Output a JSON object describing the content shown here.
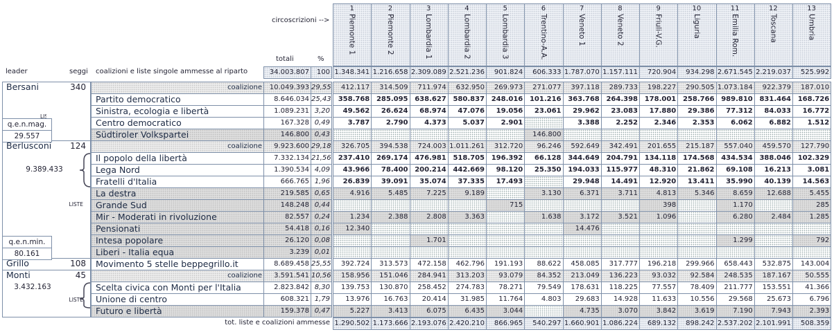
{
  "header": {
    "arrow": "circoscrizioni -->",
    "totals_label": "totali",
    "pct_label": "%",
    "leader_label": "leader",
    "seats_label": "seggi",
    "lists_label": "coalizioni e liste singole ammesse al riparto"
  },
  "districts": [
    {
      "number": "1",
      "name": "Piemonte 1"
    },
    {
      "number": "2",
      "name": "Piemonte 2"
    },
    {
      "number": "3",
      "name": "Lombardia 1"
    },
    {
      "number": "4",
      "name": "Lombardia 2"
    },
    {
      "number": "5",
      "name": "Lombardia 3"
    },
    {
      "number": "6",
      "name": "Trentino-A.A."
    },
    {
      "number": "7",
      "name": "Veneto 1"
    },
    {
      "number": "8",
      "name": "Veneto 2"
    },
    {
      "number": "9",
      "name": "Friuli-V.G."
    },
    {
      "number": "10",
      "name": "Liguria"
    },
    {
      "number": "11",
      "name": "Emilia Rom."
    },
    {
      "number": "12",
      "name": "Toscana"
    },
    {
      "number": "13",
      "name": "Umbria"
    }
  ],
  "grand_total": {
    "total": "34.003.807",
    "pct": "100",
    "values": [
      "1.348.341",
      "1.216.658",
      "2.309.089",
      "2.521.236",
      "901.824",
      "606.333",
      "1.787.070",
      "1.157.111",
      "720.904",
      "934.298",
      "2.671.545",
      "2.219.037",
      "525.992"
    ]
  },
  "rows": [
    {
      "leader": "Bersani",
      "seats": "340",
      "label": "coalizione",
      "total": "10.049.393",
      "pct": "29,55",
      "values": [
        "412.117",
        "314.509",
        "711.974",
        "632.950",
        "269.973",
        "271.077",
        "397.118",
        "289.733",
        "198.227",
        "290.505",
        "1.073.184",
        "922.379",
        "187.010"
      ]
    },
    {
      "label": "Partito democratico",
      "total": "8.646.034",
      "pct": "25,43",
      "values": [
        "358.768",
        "285.095",
        "638.627",
        "580.837",
        "248.016",
        "101.216",
        "363.768",
        "264.398",
        "178.001",
        "258.766",
        "989.810",
        "831.464",
        "168.726"
      ]
    },
    {
      "label": "Sinistra, ecologia e libertà",
      "total": "1.089.231",
      "pct": "3,20",
      "values": [
        "49.562",
        "26.624",
        "68.974",
        "47.076",
        "19.056",
        "23.061",
        "29.962",
        "23.083",
        "17.880",
        "29.386",
        "77.312",
        "84.033",
        "16.772"
      ]
    },
    {
      "label": "Centro democratico",
      "total": "167.328",
      "pct": "0,49",
      "values": [
        "3.787",
        "2.790",
        "4.373",
        "5.037",
        "2.901",
        null,
        "3.388",
        "2.252",
        "2.346",
        "2.353",
        "6.062",
        "6.882",
        "1.512"
      ]
    },
    {
      "label": "Südtiroler Volkspartei",
      "total": "146.800",
      "pct": "0,43",
      "values": [
        null,
        null,
        null,
        null,
        null,
        "146.800",
        null,
        null,
        null,
        null,
        null,
        null,
        null
      ]
    },
    {
      "leader": "Berlusconi",
      "seats": "124",
      "label": "coalizione",
      "total": "9.923.600",
      "pct": "29,18",
      "values": [
        "326.705",
        "394.538",
        "724.003",
        "1.011.261",
        "312.720",
        "96.246",
        "592.649",
        "342.491",
        "201.655",
        "215.187",
        "557.040",
        "459.570",
        "127.790"
      ]
    },
    {
      "label": "Il popolo della libertà",
      "total": "7.332.134",
      "pct": "21,56",
      "values": [
        "237.410",
        "269.174",
        "476.981",
        "518.705",
        "196.392",
        "66.128",
        "344.649",
        "204.791",
        "134.118",
        "174.568",
        "434.534",
        "388.046",
        "102.329"
      ]
    },
    {
      "label": "Lega Nord",
      "total": "1.390.534",
      "pct": "4,09",
      "values": [
        "43.966",
        "78.400",
        "200.214",
        "442.669",
        "98.120",
        "25.350",
        "194.033",
        "115.977",
        "48.310",
        "21.862",
        "69.108",
        "16.213",
        "3.081"
      ]
    },
    {
      "label": "Fratelli d'Italia",
      "total": "666.765",
      "pct": "1,96",
      "values": [
        "26.839",
        "39.091",
        "35.074",
        "37.335",
        "17.493",
        null,
        "29.948",
        "14.491",
        "12.920",
        "13.411",
        "35.990",
        "40.139",
        "14.563"
      ]
    },
    {
      "label": "La destra",
      "total": "219.585",
      "pct": "0,65",
      "values": [
        "4.916",
        "5.485",
        "7.225",
        "9.189",
        null,
        "3.130",
        "6.371",
        "3.711",
        "4.813",
        "5.346",
        "8.659",
        "12.688",
        "5.455"
      ]
    },
    {
      "label": "Grande Sud",
      "total": "148.248",
      "pct": "0,44",
      "values": [
        null,
        null,
        null,
        null,
        "715",
        null,
        null,
        null,
        "398",
        null,
        "1.170",
        null,
        "285"
      ]
    },
    {
      "label": "Mir - Moderati in rivoluzione",
      "total": "82.557",
      "pct": "0,24",
      "values": [
        "1.234",
        "2.388",
        "2.808",
        "3.363",
        null,
        "1.638",
        "3.172",
        "3.521",
        "1.096",
        null,
        "6.280",
        "2.484",
        "1.285"
      ]
    },
    {
      "label": "Pensionati",
      "total": "54.418",
      "pct": "0,16",
      "values": [
        "12.340",
        null,
        null,
        null,
        null,
        null,
        "14.476",
        null,
        null,
        null,
        null,
        null,
        null
      ]
    },
    {
      "label": "Intesa popolare",
      "total": "26.120",
      "pct": "0,08",
      "values": [
        null,
        null,
        "1.701",
        null,
        null,
        null,
        null,
        null,
        null,
        null,
        "1.299",
        null,
        "792"
      ]
    },
    {
      "label": "Liberi - Italia equa",
      "total": "3.239",
      "pct": "0,01",
      "values": [
        null,
        null,
        null,
        null,
        null,
        null,
        null,
        null,
        null,
        null,
        null,
        null,
        null
      ]
    },
    {
      "leader": "Grillo",
      "seats": "108",
      "label": "Movimento 5 stelle beppegrillo.it",
      "total": "8.689.458",
      "pct": "25,55",
      "values": [
        "392.724",
        "313.573",
        "472.158",
        "462.796",
        "191.193",
        "88.622",
        "458.085",
        "317.777",
        "196.218",
        "299.966",
        "658.443",
        "532.875",
        "143.004"
      ]
    },
    {
      "leader": "Monti",
      "seats": "45",
      "label": "coalizione",
      "total": "3.591.541",
      "pct": "10,56",
      "values": [
        "158.956",
        "151.046",
        "284.941",
        "313.203",
        "93.079",
        "84.352",
        "213.049",
        "136.223",
        "93.032",
        "92.584",
        "248.535",
        "187.167",
        "50.555"
      ]
    },
    {
      "label": "Scelta civica con Monti per l'Italia",
      "total": "2.823.842",
      "pct": "8,30",
      "values": [
        "139.753",
        "130.870",
        "258.452",
        "274.783",
        "78.271",
        "79.549",
        "178.631",
        "118.225",
        "77.557",
        "78.409",
        "211.777",
        "153.551",
        "41.366"
      ]
    },
    {
      "label": "Unione di centro",
      "total": "608.321",
      "pct": "1,79",
      "values": [
        "13.976",
        "16.763",
        "20.414",
        "31.985",
        "11.764",
        "4.803",
        "29.683",
        "14.928",
        "11.633",
        "10.556",
        "29.568",
        "25.673",
        "6.796"
      ]
    },
    {
      "label": "Futuro e libertà",
      "total": "159.378",
      "pct": "0,47",
      "values": [
        "5.227",
        "3.413",
        "6.075",
        "6.435",
        "3.044",
        null,
        "4.735",
        "3.070",
        "3.842",
        "3.619",
        "7.190",
        "7.943",
        "2.393"
      ]
    }
  ],
  "side_labels": [
    "LISTE",
    "q.e.n.mag.",
    "29.557",
    "9.389.433",
    "LISTE",
    "q.e.n.min.",
    "80.161",
    "3.432.163",
    "LISTE"
  ],
  "footer": {
    "label": "tot. liste e coalizioni ammesse",
    "values": [
      "1.290.502",
      "1.173.666",
      "2.193.076",
      "2.420.210",
      "866.965",
      "540.297",
      "1.660.901",
      "1.086.224",
      "689.132",
      "898.242",
      "2.537.202",
      "2.101.991",
      "508.359"
    ]
  }
}
